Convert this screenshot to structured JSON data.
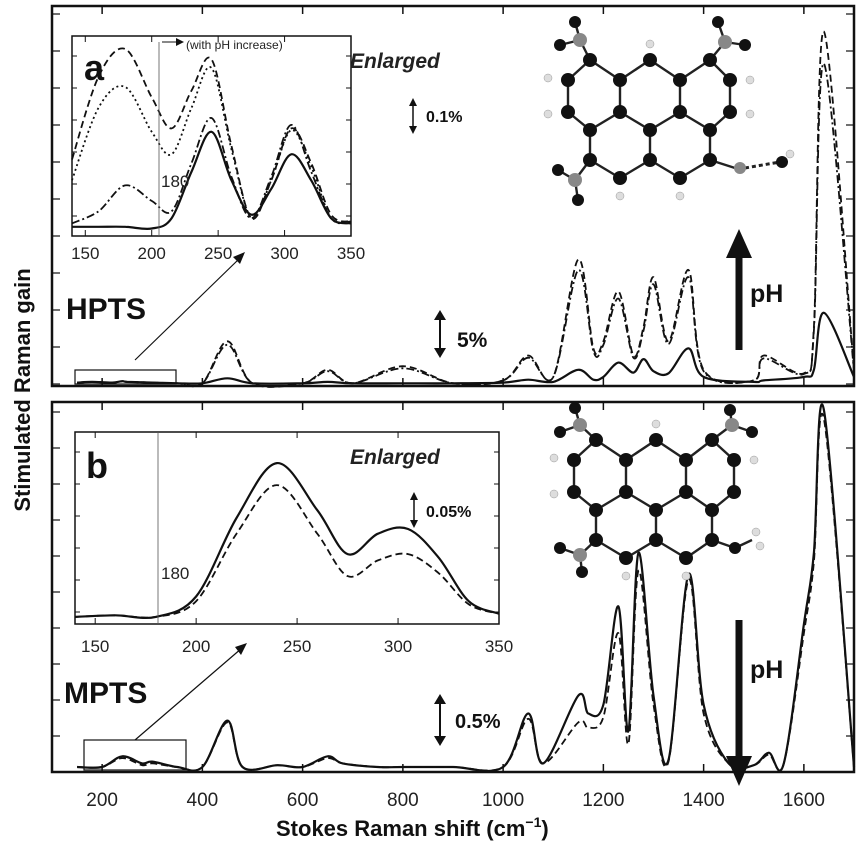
{
  "chart_data": [
    {
      "panel": "a",
      "type": "line",
      "title": "HPTS",
      "xlim": [
        100,
        1700
      ],
      "x": [
        150,
        180,
        220,
        240,
        250,
        300,
        350,
        400,
        450,
        500,
        600,
        650,
        700,
        800,
        900,
        1000,
        1050,
        1100,
        1150,
        1180,
        1200,
        1230,
        1260,
        1280,
        1300,
        1330,
        1370,
        1400,
        1500,
        1520,
        1600,
        1620,
        1640,
        1700
      ],
      "series": [
        {
          "style": "solid",
          "values": [
            0.2,
            0.3,
            0.2,
            0.4,
            0.3,
            0.2,
            0.1,
            0.1,
            0.8,
            0.1,
            0.1,
            0.3,
            0.1,
            0.1,
            0.1,
            0.2,
            0.6,
            0.3,
            2.0,
            0.6,
            1.0,
            3.0,
            1.6,
            3.5,
            1.8,
            1.5,
            5.0,
            1.0,
            0.3,
            0.5,
            1.0,
            2.0,
            10.0,
            1.0
          ]
        },
        {
          "style": "dashed",
          "values": [
            0.2,
            0.3,
            0.2,
            0.4,
            0.3,
            0.2,
            0.1,
            0.1,
            6.0,
            0.1,
            0.1,
            2.0,
            0.1,
            2.5,
            0.1,
            0.5,
            4.0,
            1.0,
            17.5,
            5.0,
            6.0,
            13.0,
            4.0,
            8.0,
            15.0,
            6.0,
            16.0,
            2.0,
            0.5,
            4.0,
            1.5,
            8.0,
            49.5,
            2.0
          ]
        },
        {
          "style": "dashdot",
          "values": [
            0.2,
            0.3,
            0.2,
            0.4,
            0.3,
            0.2,
            0.1,
            0.1,
            5.5,
            0.1,
            0.1,
            1.8,
            0.1,
            2.2,
            0.1,
            0.5,
            3.7,
            1.0,
            16.0,
            4.6,
            5.5,
            12.0,
            3.7,
            7.5,
            14.0,
            5.6,
            15.0,
            1.8,
            0.5,
            3.6,
            1.4,
            7.5,
            45.0,
            1.8
          ]
        }
      ],
      "annotations": [
        "pH",
        "5%"
      ]
    },
    {
      "panel": "a-inset",
      "type": "line",
      "title": "Enlarged",
      "xlim": [
        140,
        350
      ],
      "x": [
        140,
        160,
        180,
        200,
        215,
        230,
        245,
        260,
        275,
        290,
        305,
        320,
        335,
        350
      ],
      "series": [
        {
          "style": "solid",
          "values": [
            0.03,
            0.03,
            0.03,
            0.02,
            0.08,
            0.35,
            0.58,
            0.3,
            0.1,
            0.25,
            0.45,
            0.3,
            0.08,
            0.05
          ]
        },
        {
          "style": "dashdot",
          "values": [
            0.05,
            0.12,
            0.27,
            0.18,
            0.12,
            0.4,
            0.66,
            0.32,
            0.08,
            0.32,
            0.62,
            0.35,
            0.08,
            0.06
          ]
        },
        {
          "style": "dotted",
          "values": [
            0.3,
            0.72,
            0.84,
            0.58,
            0.45,
            0.72,
            0.95,
            0.48,
            0.08,
            0.3,
            0.59,
            0.38,
            0.08,
            0.06
          ]
        },
        {
          "style": "dashed",
          "values": [
            0.42,
            0.9,
            1.06,
            0.78,
            0.6,
            0.82,
            1.0,
            0.5,
            0.08,
            0.3,
            0.6,
            0.4,
            0.1,
            0.06
          ]
        }
      ],
      "annotations": [
        "(with pH increase)",
        "180",
        "0.1%"
      ]
    },
    {
      "panel": "b",
      "type": "line",
      "title": "MPTS",
      "xlim": [
        100,
        1700
      ],
      "x": [
        150,
        200,
        240,
        280,
        300,
        350,
        400,
        450,
        480,
        550,
        600,
        650,
        680,
        750,
        800,
        900,
        1000,
        1050,
        1080,
        1150,
        1170,
        1200,
        1230,
        1250,
        1270,
        1300,
        1330,
        1370,
        1400,
        1450,
        1500,
        1530,
        1560,
        1600,
        1620,
        1640,
        1700
      ],
      "series": [
        {
          "style": "solid",
          "values": [
            0.0,
            0.0,
            0.6,
            0.2,
            0.3,
            0.0,
            0.0,
            2.6,
            0.0,
            0.1,
            0.0,
            0.6,
            0.2,
            0.0,
            0.0,
            0.0,
            0.0,
            3.0,
            0.2,
            4.0,
            3.0,
            3.5,
            9.0,
            2.0,
            12.0,
            4.0,
            0.4,
            10.8,
            3.5,
            0.2,
            0.1,
            0.8,
            0.2,
            8.0,
            12.0,
            20.0,
            0.0
          ]
        },
        {
          "style": "dashed",
          "values": [
            0.0,
            0.0,
            0.5,
            0.1,
            0.2,
            0.0,
            0.0,
            2.5,
            0.0,
            0.1,
            0.0,
            0.5,
            0.2,
            0.0,
            0.0,
            0.0,
            0.0,
            2.7,
            0.2,
            2.5,
            2.2,
            2.8,
            7.5,
            1.3,
            11.0,
            3.5,
            0.3,
            10.5,
            3.0,
            0.2,
            0.1,
            0.7,
            0.2,
            7.5,
            11.5,
            19.5,
            0.0
          ]
        }
      ],
      "annotations": [
        "pH",
        "0.5%"
      ]
    },
    {
      "panel": "b-inset",
      "type": "line",
      "title": "Enlarged",
      "xlim": [
        140,
        350
      ],
      "x": [
        140,
        160,
        180,
        200,
        220,
        240,
        260,
        275,
        290,
        305,
        320,
        335,
        350
      ],
      "series": [
        {
          "style": "solid",
          "values": [
            0.02,
            0.03,
            0.02,
            0.15,
            0.65,
            1.0,
            0.7,
            0.42,
            0.55,
            0.58,
            0.4,
            0.12,
            0.04
          ]
        },
        {
          "style": "dashed",
          "values": [
            0.02,
            0.03,
            0.02,
            0.12,
            0.55,
            0.86,
            0.55,
            0.28,
            0.38,
            0.42,
            0.3,
            0.1,
            0.04
          ]
        }
      ],
      "annotations": [
        "180",
        "0.05%"
      ]
    }
  ],
  "labels": {
    "ylabel": "Stimulated Raman gain",
    "xlabel": "Stokes Raman shift (cm",
    "xlabel_sup": "−1",
    "xlabel_end": ")",
    "panel_a": "a",
    "panel_b": "b",
    "hpts": "HPTS",
    "mpts": "MPTS",
    "enlarged_a": "Enlarged",
    "enlarged_b": "Enlarged",
    "scale_a_inset": "0.1%",
    "scale_b_inset": "0.05%",
    "scale_a_main": "5%",
    "scale_b_main": "0.5%",
    "ph_up": "pH",
    "ph_down": "pH",
    "ph_increase": "(with pH increase)",
    "line180_a": "180",
    "line180_b": "180"
  },
  "x_ticks": [
    "200",
    "400",
    "600",
    "800",
    "1000",
    "1200",
    "1400",
    "1600"
  ],
  "inset_ticks": [
    "150",
    "200",
    "250",
    "300",
    "350"
  ],
  "inset_b_ticks": [
    "150",
    "200",
    "250",
    "300",
    "350"
  ]
}
